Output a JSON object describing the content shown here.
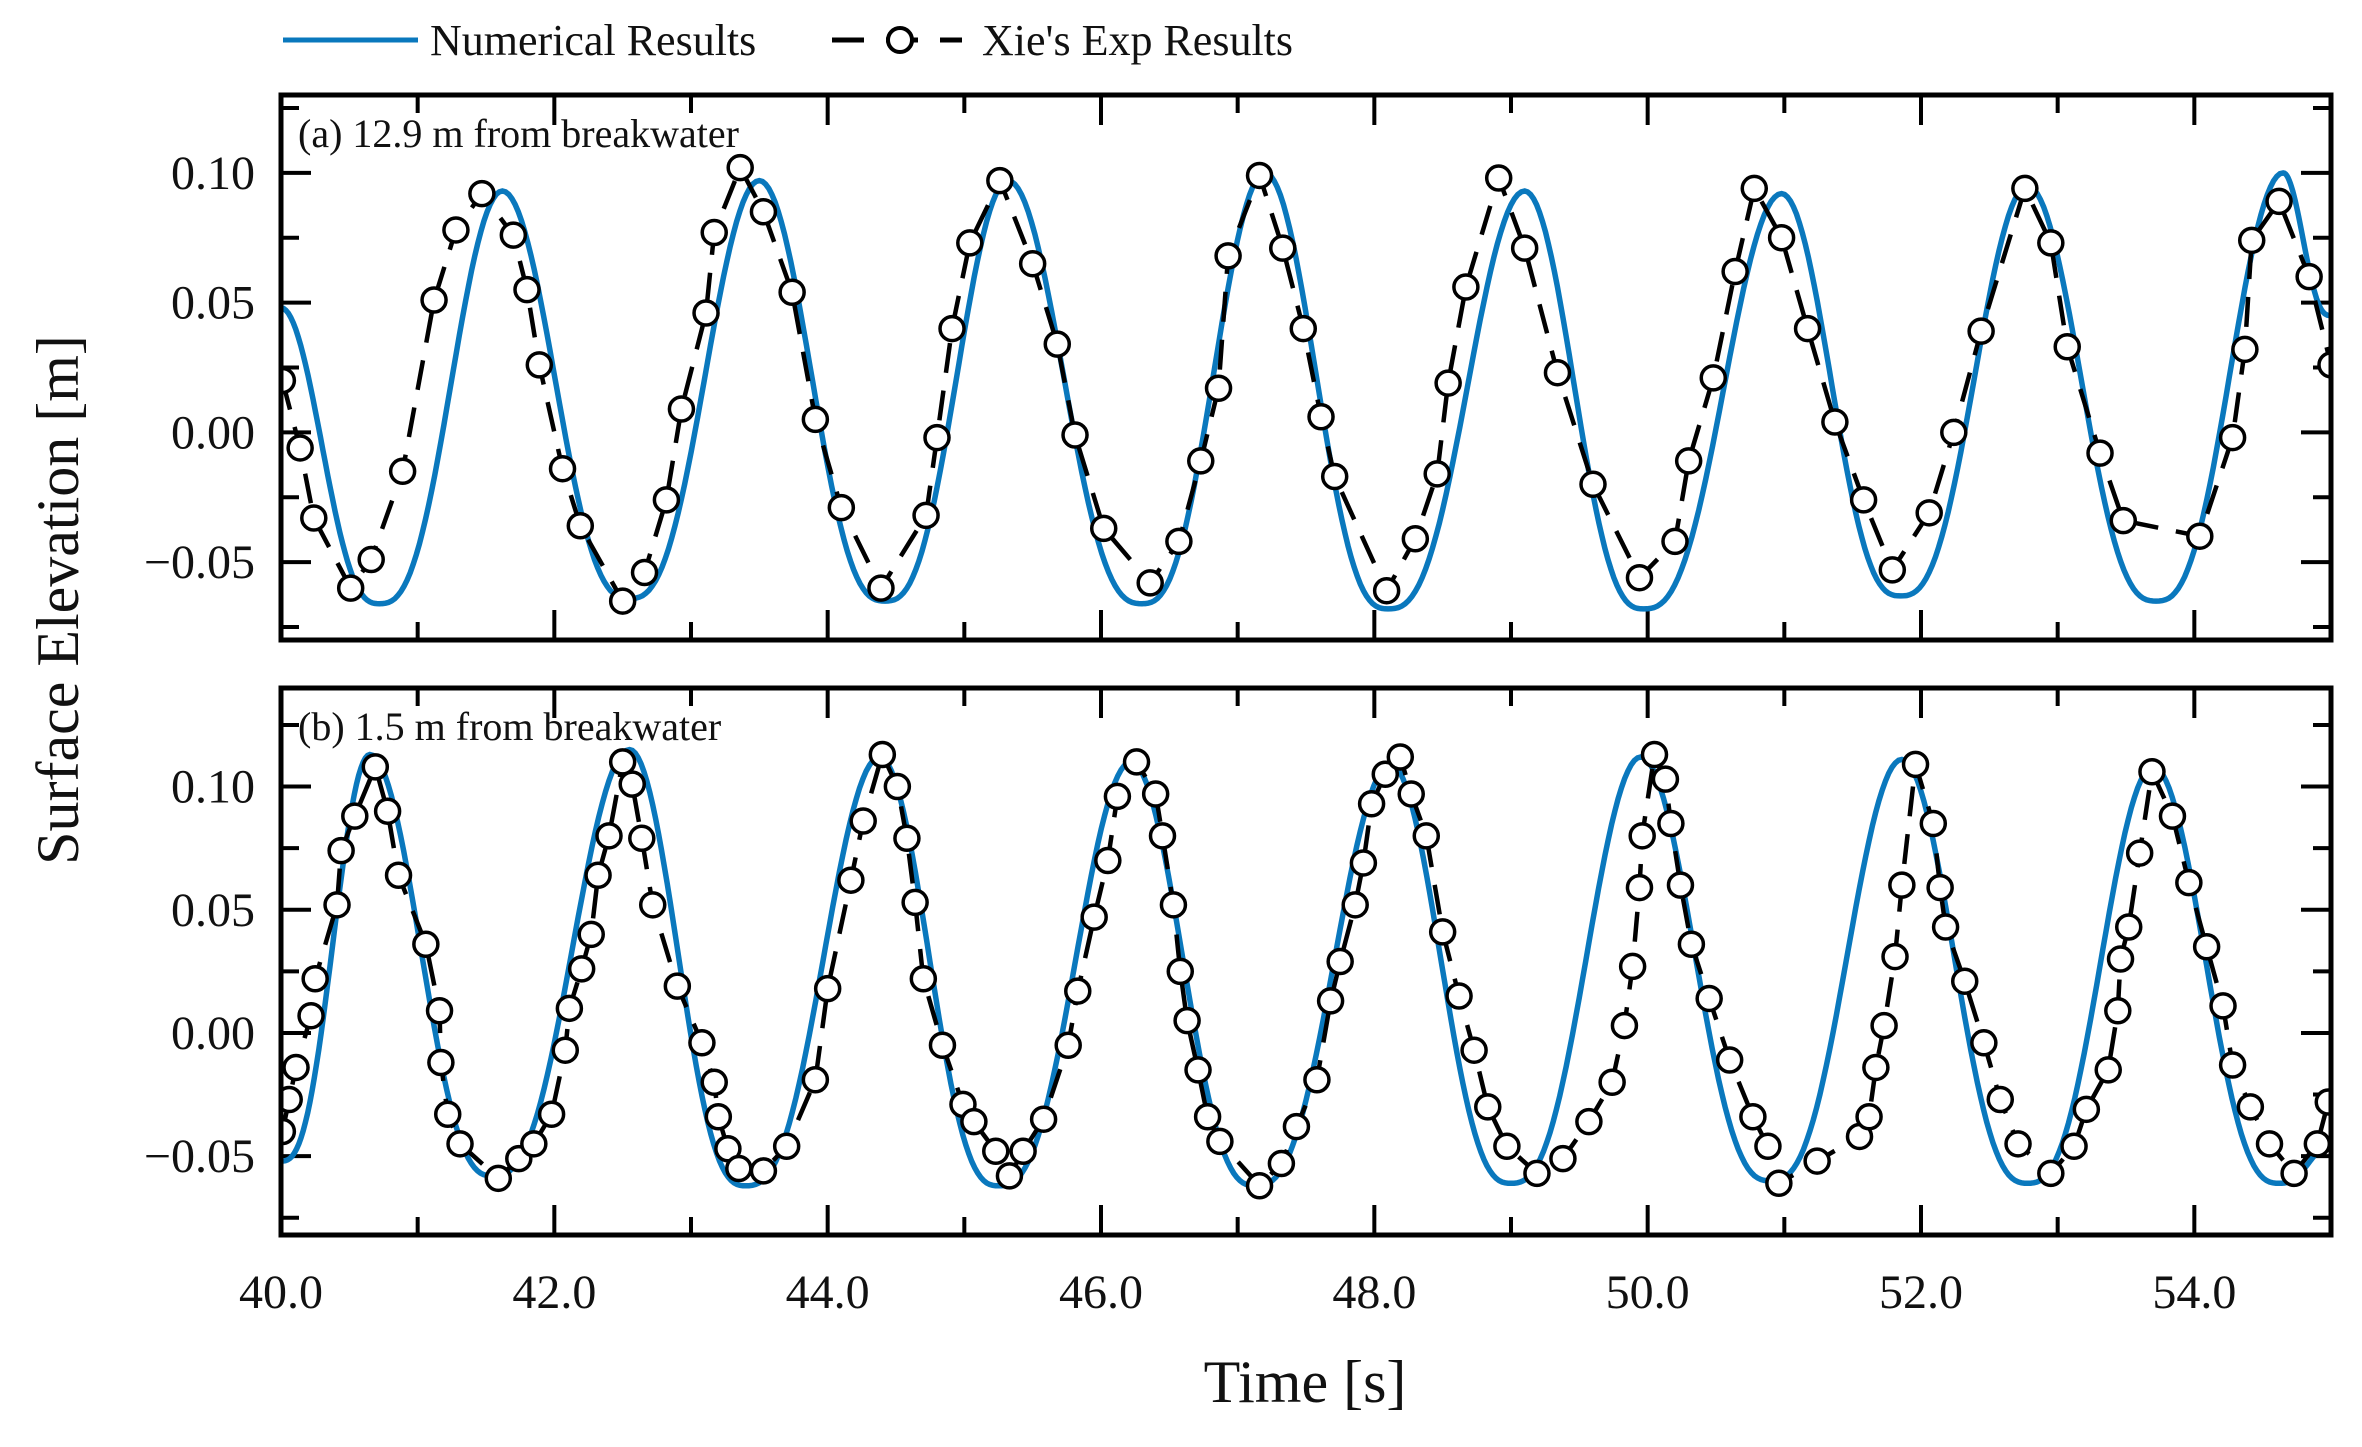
{
  "legend": {
    "numerical_label": "Numerical Results",
    "experimental_label": "Xie's Exp Results",
    "placement": "top"
  },
  "ylabel": "Surface Elevation [m]",
  "xlabel": "Time [s]",
  "colors": {
    "numerical": "#0a78bd",
    "experimental": "#000000",
    "marker_fill": "#ffffff"
  },
  "chart_data": [
    {
      "type": "line",
      "panel_label": "(a) 12.9 m from breakwater",
      "xlim": [
        40,
        55
      ],
      "ylim": [
        -0.08,
        0.13
      ],
      "xticks": [
        40,
        42,
        44,
        46,
        48,
        50,
        52,
        54
      ],
      "yticks": [
        -0.05,
        0.0,
        0.05,
        0.1
      ],
      "ytick_labels": [
        "−0.05",
        "0.00",
        "0.05",
        "0.10"
      ],
      "grid": false,
      "series": [
        {
          "name": "Numerical Results",
          "style": "solid",
          "x": [
            40.0,
            40.72,
            41.62,
            42.55,
            43.5,
            44.42,
            45.32,
            46.3,
            47.2,
            48.1,
            49.1,
            49.97,
            50.98,
            51.85,
            52.78,
            53.72,
            54.65,
            55.0
          ],
          "y": [
            0.048,
            -0.066,
            0.093,
            -0.064,
            0.097,
            -0.065,
            0.097,
            -0.066,
            0.1,
            -0.068,
            0.093,
            -0.068,
            0.092,
            -0.063,
            0.095,
            -0.065,
            0.1,
            0.045
          ]
        },
        {
          "name": "Xie's Exp Results",
          "style": "dashed-circle",
          "x": [
            40.01,
            40.14,
            40.24,
            40.51,
            40.66,
            40.89,
            41.12,
            41.28,
            41.47,
            41.7,
            41.8,
            41.89,
            42.06,
            42.19,
            42.5,
            42.66,
            42.82,
            42.93,
            43.11,
            43.17,
            43.36,
            43.53,
            43.74,
            43.91,
            44.1,
            44.39,
            44.72,
            44.8,
            44.91,
            45.04,
            45.26,
            45.5,
            45.68,
            45.81,
            46.02,
            46.36,
            46.57,
            46.73,
            46.86,
            46.93,
            47.16,
            47.33,
            47.48,
            47.61,
            47.71,
            48.09,
            48.3,
            48.46,
            48.54,
            48.67,
            48.91,
            49.1,
            49.34,
            49.6,
            49.94,
            50.2,
            50.3,
            50.48,
            50.64,
            50.78,
            50.98,
            51.17,
            51.37,
            51.58,
            51.79,
            52.06,
            52.24,
            52.44,
            52.76,
            52.95,
            53.07,
            53.31,
            53.48,
            54.04,
            54.28,
            54.37,
            54.42,
            54.62,
            54.84,
            55.0
          ],
          "y": [
            0.02,
            -0.006,
            -0.033,
            -0.06,
            -0.049,
            -0.015,
            0.051,
            0.078,
            0.092,
            0.076,
            0.055,
            0.026,
            -0.014,
            -0.036,
            -0.065,
            -0.054,
            -0.026,
            0.009,
            0.046,
            0.077,
            0.102,
            0.085,
            0.054,
            0.005,
            -0.029,
            -0.06,
            -0.032,
            -0.002,
            0.04,
            0.073,
            0.097,
            0.065,
            0.034,
            -0.001,
            -0.037,
            -0.058,
            -0.042,
            -0.011,
            0.017,
            0.068,
            0.099,
            0.071,
            0.04,
            0.006,
            -0.017,
            -0.061,
            -0.041,
            -0.016,
            0.019,
            0.056,
            0.098,
            0.071,
            0.023,
            -0.02,
            -0.056,
            -0.042,
            -0.011,
            0.021,
            0.062,
            0.094,
            0.075,
            0.04,
            0.004,
            -0.026,
            -0.053,
            -0.031,
            0.0,
            0.039,
            0.094,
            0.073,
            0.033,
            -0.008,
            -0.034,
            -0.04,
            -0.002,
            0.032,
            0.074,
            0.089,
            0.06,
            0.026
          ]
        }
      ]
    },
    {
      "type": "line",
      "panel_label": "(b) 1.5 m from breakwater",
      "xlim": [
        40,
        55
      ],
      "ylim": [
        -0.082,
        0.14
      ],
      "xticks": [
        40,
        42,
        44,
        46,
        48,
        50,
        52,
        54
      ],
      "xtick_labels": [
        "40.0",
        "42.0",
        "44.0",
        "46.0",
        "48.0",
        "50.0",
        "52.0",
        "54.0"
      ],
      "yticks": [
        -0.05,
        0.0,
        0.05,
        0.1
      ],
      "ytick_labels": [
        "−0.05",
        "0.00",
        "0.05",
        "0.10"
      ],
      "grid": false,
      "series": [
        {
          "name": "Numerical Results",
          "style": "solid",
          "x": [
            40.0,
            40.65,
            41.55,
            42.55,
            43.4,
            44.38,
            45.25,
            46.22,
            47.13,
            48.12,
            49.0,
            49.95,
            50.9,
            51.86,
            52.78,
            53.7,
            54.62,
            55.0
          ],
          "y": [
            -0.052,
            0.113,
            -0.058,
            0.115,
            -0.062,
            0.112,
            -0.062,
            0.11,
            -0.062,
            0.109,
            -0.061,
            0.112,
            -0.06,
            0.111,
            -0.061,
            0.108,
            -0.061,
            -0.045
          ]
        },
        {
          "name": "Xie's Exp Results",
          "style": "dashed-circle",
          "x": [
            40.01,
            40.06,
            40.11,
            40.22,
            40.25,
            40.41,
            40.44,
            40.54,
            40.69,
            40.78,
            40.86,
            41.06,
            41.16,
            41.17,
            41.22,
            41.31,
            41.59,
            41.74,
            41.85,
            41.98,
            42.08,
            42.11,
            42.2,
            42.27,
            42.32,
            42.4,
            42.5,
            42.57,
            42.64,
            42.72,
            42.9,
            43.08,
            43.17,
            43.2,
            43.27,
            43.35,
            43.53,
            43.7,
            43.91,
            44.0,
            44.17,
            44.26,
            44.4,
            44.51,
            44.58,
            44.64,
            44.7,
            44.84,
            44.99,
            45.07,
            45.23,
            45.33,
            45.43,
            45.58,
            45.76,
            45.83,
            45.95,
            46.05,
            46.12,
            46.26,
            46.4,
            46.45,
            46.53,
            46.58,
            46.63,
            46.71,
            46.78,
            46.87,
            47.16,
            47.32,
            47.43,
            47.58,
            47.68,
            47.75,
            47.86,
            47.92,
            47.98,
            48.08,
            48.19,
            48.27,
            48.38,
            48.5,
            48.62,
            48.73,
            48.83,
            48.97,
            49.19,
            49.38,
            49.57,
            49.74,
            49.83,
            49.89,
            49.94,
            49.96,
            50.05,
            50.13,
            50.17,
            50.24,
            50.32,
            50.45,
            50.6,
            50.77,
            50.88,
            50.96,
            51.24,
            51.55,
            51.62,
            51.67,
            51.73,
            51.81,
            51.86,
            51.96,
            52.09,
            52.14,
            52.18,
            52.32,
            52.46,
            52.58,
            52.71,
            52.95,
            53.12,
            53.21,
            53.37,
            53.44,
            53.46,
            53.52,
            53.6,
            53.69,
            53.84,
            53.96,
            54.09,
            54.21,
            54.28,
            54.41,
            54.55,
            54.73,
            54.9,
            54.98
          ],
          "y": [
            -0.04,
            -0.027,
            -0.014,
            0.007,
            0.022,
            0.052,
            0.074,
            0.088,
            0.108,
            0.09,
            0.064,
            0.036,
            0.009,
            -0.012,
            -0.033,
            -0.045,
            -0.059,
            -0.051,
            -0.045,
            -0.033,
            -0.007,
            0.01,
            0.026,
            0.04,
            0.064,
            0.08,
            0.11,
            0.101,
            0.079,
            0.052,
            0.019,
            -0.004,
            -0.02,
            -0.034,
            -0.047,
            -0.055,
            -0.056,
            -0.046,
            -0.019,
            0.018,
            0.062,
            0.086,
            0.113,
            0.1,
            0.079,
            0.053,
            0.022,
            -0.005,
            -0.029,
            -0.036,
            -0.048,
            -0.058,
            -0.048,
            -0.035,
            -0.005,
            0.017,
            0.047,
            0.07,
            0.096,
            0.11,
            0.097,
            0.08,
            0.052,
            0.025,
            0.005,
            -0.015,
            -0.034,
            -0.044,
            -0.062,
            -0.053,
            -0.038,
            -0.019,
            0.013,
            0.029,
            0.052,
            0.069,
            0.093,
            0.105,
            0.112,
            0.097,
            0.08,
            0.041,
            0.015,
            -0.007,
            -0.03,
            -0.046,
            -0.057,
            -0.051,
            -0.036,
            -0.02,
            0.003,
            0.027,
            0.059,
            0.08,
            0.113,
            0.103,
            0.085,
            0.06,
            0.036,
            0.014,
            -0.011,
            -0.034,
            -0.046,
            -0.061,
            -0.052,
            -0.042,
            -0.034,
            -0.014,
            0.003,
            0.031,
            0.06,
            0.109,
            0.085,
            0.059,
            0.043,
            0.021,
            -0.004,
            -0.027,
            -0.045,
            -0.057,
            -0.046,
            -0.031,
            -0.015,
            0.009,
            0.03,
            0.043,
            0.073,
            0.106,
            0.088,
            0.061,
            0.035,
            0.011,
            -0.013,
            -0.03,
            -0.045,
            -0.057,
            -0.045,
            -0.028
          ]
        }
      ]
    }
  ]
}
